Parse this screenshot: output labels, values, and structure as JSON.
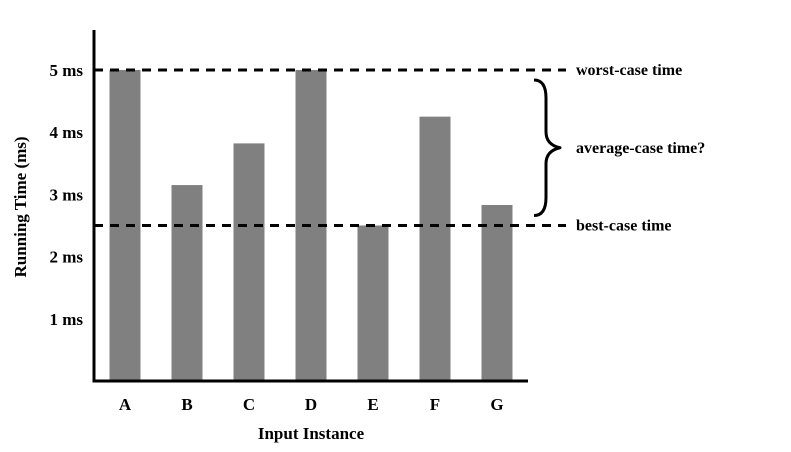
{
  "chart_data": {
    "type": "bar",
    "categories": [
      "A",
      "B",
      "C",
      "D",
      "E",
      "F",
      "G"
    ],
    "values": [
      5.0,
      3.15,
      3.82,
      5.0,
      2.5,
      4.25,
      2.83
    ],
    "xlabel": "Input Instance",
    "ylabel": "Running Time (ms)",
    "ylim": [
      0,
      5.75
    ],
    "yticks": [
      {
        "value": 1,
        "label": "1 ms"
      },
      {
        "value": 2,
        "label": "2 ms"
      },
      {
        "value": 3,
        "label": "3 ms"
      },
      {
        "value": 4,
        "label": "4 ms"
      },
      {
        "value": 5,
        "label": "5 ms"
      }
    ],
    "grid": false,
    "legend": "none",
    "bar_color": "#808080",
    "reference_lines": [
      {
        "name": "worst",
        "value": 5.0,
        "label": "worst-case time"
      },
      {
        "name": "best",
        "value": 2.5,
        "label": "best-case time"
      }
    ],
    "bracket": {
      "from": 2.5,
      "to": 5.0,
      "label": "average-case time?"
    }
  }
}
